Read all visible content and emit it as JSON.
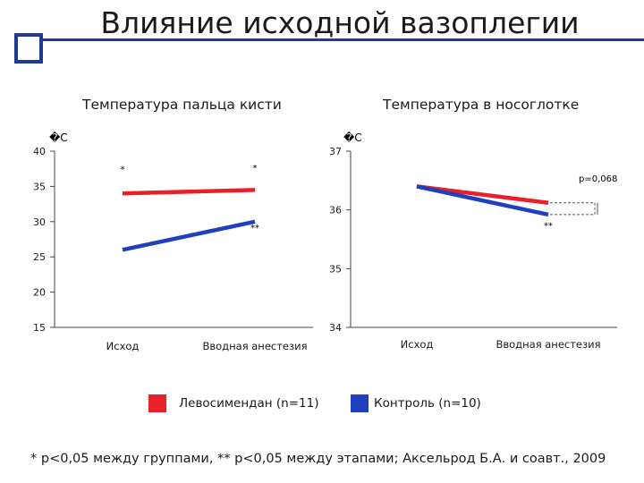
{
  "title": "Влияние исходной вазоплегии",
  "chart_data": [
    {
      "type": "line",
      "title": "Температура пальца кисти",
      "ylabel": "�C",
      "ylim": [
        15,
        40
      ],
      "yticks": [
        15,
        20,
        25,
        30,
        35,
        40
      ],
      "categories": [
        "Исход",
        "Вводная анестезия"
      ],
      "series": [
        {
          "name": "Левосимендан (n=11)",
          "color": "#e8202a",
          "values": [
            34,
            34.5
          ]
        },
        {
          "name": "Контроль (n=10)",
          "color": "#1f3fbf",
          "values": [
            26,
            30
          ]
        }
      ],
      "annotations": [
        {
          "text": "*",
          "category": "Исход",
          "y": 37
        },
        {
          "text": "*",
          "category": "Вводная анестезия",
          "y": 37.2
        },
        {
          "text": "**",
          "category": "Вводная анестезия",
          "y": 28.7
        }
      ]
    },
    {
      "type": "line",
      "title": "Температура в носоглотке",
      "ylabel": "�C",
      "ylim": [
        34,
        37
      ],
      "yticks": [
        34,
        35,
        36,
        37
      ],
      "categories": [
        "Исход",
        "Вводная анестезия"
      ],
      "series": [
        {
          "name": "Левосимендан (n=11)",
          "color": "#e8202a",
          "values": [
            36.4,
            36.12
          ]
        },
        {
          "name": "Контроль (n=10)",
          "color": "#1f3fbf",
          "values": [
            36.4,
            35.92
          ]
        }
      ],
      "annotations": [
        {
          "text": "**",
          "category": "Вводная анестезия",
          "y": 35.68
        },
        {
          "text": "p=0,068",
          "category": "Вводная анестезия",
          "y": 36.3
        }
      ]
    }
  ],
  "legend": [
    {
      "label": "Левосимендан (n=11)",
      "color": "#e8202a"
    },
    {
      "label": "Контроль (n=10)",
      "color": "#1f3fbf"
    }
  ],
  "footnote": "* p<0,05 между группами, ** p<0,05 между этапами; Аксельрод Б.А. и соавт., 2009"
}
